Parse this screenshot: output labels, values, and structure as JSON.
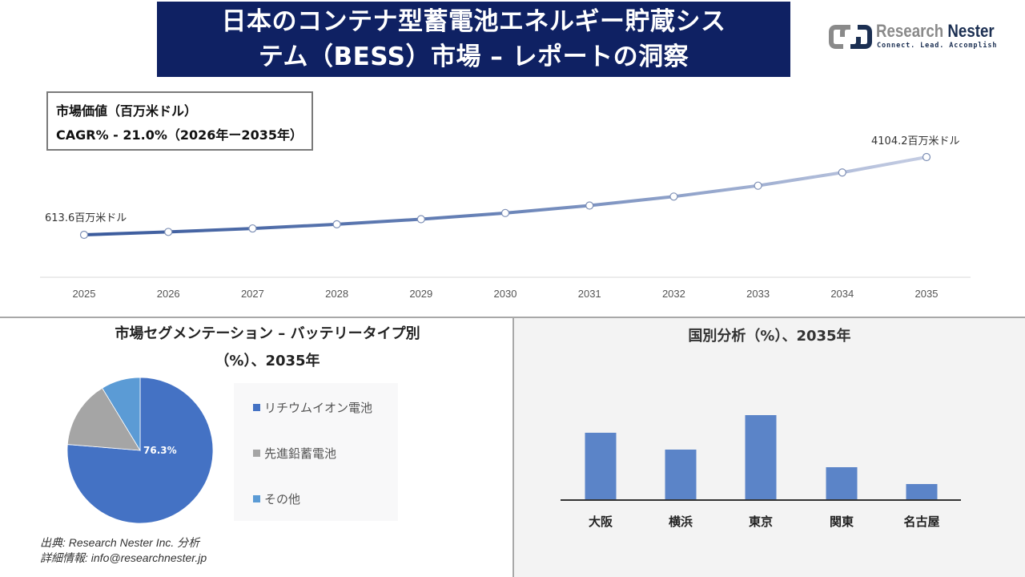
{
  "header": {
    "title_line1": "日本のコンテナ型蓄電池エネルギー貯蔵シス",
    "title_line2": "テム（BESS）市場 – レポートの洞察",
    "logo_name_part1": "Research ",
    "logo_name_part2": "Nester",
    "logo_tagline": "Connect. Lead. Accomplish"
  },
  "summary": {
    "label": "市場価値（百万米ドル）",
    "cagr": "CAGR% - 21.0%（2026年ー2035年）"
  },
  "segment_panel": {
    "title_line1": "市場セグメンテーション – バッテリータイプ別",
    "title_line2": "（%）、2035年",
    "pie_label": "76.3%"
  },
  "country_panel": {
    "title": "国別分析（%）、2035年"
  },
  "footer": {
    "source": "出典: Research Nester Inc. 分析",
    "contact": "詳細情報: info@researchnester.jp"
  },
  "colors": {
    "title_bg": "#0f2163",
    "line_start": "#3a5a9c",
    "line_end": "#c5cde3",
    "pie_lithium": "#4472c4",
    "pie_lead": "#a5a5a5",
    "pie_other": "#5b9bd5",
    "bar": "#5b84c8"
  },
  "chart_data": [
    {
      "type": "line",
      "title": "市場価値（百万米ドル）",
      "subtitle": "CAGR% - 21.0%（2026年ー2035年）",
      "x": [
        "2025",
        "2026",
        "2027",
        "2028",
        "2029",
        "2030",
        "2031",
        "2032",
        "2033",
        "2034",
        "2035"
      ],
      "values": [
        613.6,
        742.5,
        898.4,
        1087.1,
        1315.4,
        1591.6,
        1925.8,
        2330.2,
        2819.6,
        3411.7,
        4104.2
      ],
      "annotations": [
        {
          "x": "2025",
          "label": "613.6百万米ドル"
        },
        {
          "x": "2035",
          "label": "4104.2百万米ドル"
        }
      ],
      "grid": false,
      "legend": "none"
    },
    {
      "type": "pie",
      "title": "市場セグメンテーション – バッテリータイプ別（%）、2035年",
      "categories": [
        "リチウムイオン電池",
        "先進鉛蓄電池",
        "その他"
      ],
      "values": [
        76.3,
        15.0,
        8.7
      ],
      "data_labels": [
        "76.3%",
        "",
        ""
      ],
      "legend": "right"
    },
    {
      "type": "bar",
      "title": "国別分析（%）、2035年",
      "categories": [
        "大阪",
        "横浜",
        "東京",
        "関東",
        "名古屋"
      ],
      "values": [
        84,
        63,
        106,
        41,
        20
      ],
      "ylabel": "",
      "xlabel": "",
      "note": "relative bar heights (no axis values shown)"
    }
  ]
}
